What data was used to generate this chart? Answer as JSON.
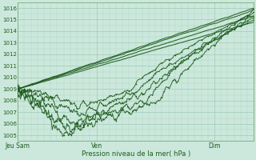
{
  "title": "Pression niveau de la mer( hPa )",
  "ylim": [
    1004.5,
    1016.5
  ],
  "xlim": [
    0,
    108
  ],
  "background_color": "#cce8dc",
  "grid_color_minor": "#aed4c0",
  "grid_color_major": "#9ecab8",
  "line_color": "#1e5c1e",
  "xtick_positions": [
    0,
    36,
    90
  ],
  "xtick_labels": [
    "Jeu Sam",
    "Ven",
    "Dim"
  ],
  "ytick_values": [
    1005,
    1006,
    1007,
    1008,
    1009,
    1010,
    1011,
    1012,
    1013,
    1014,
    1015,
    1016
  ]
}
